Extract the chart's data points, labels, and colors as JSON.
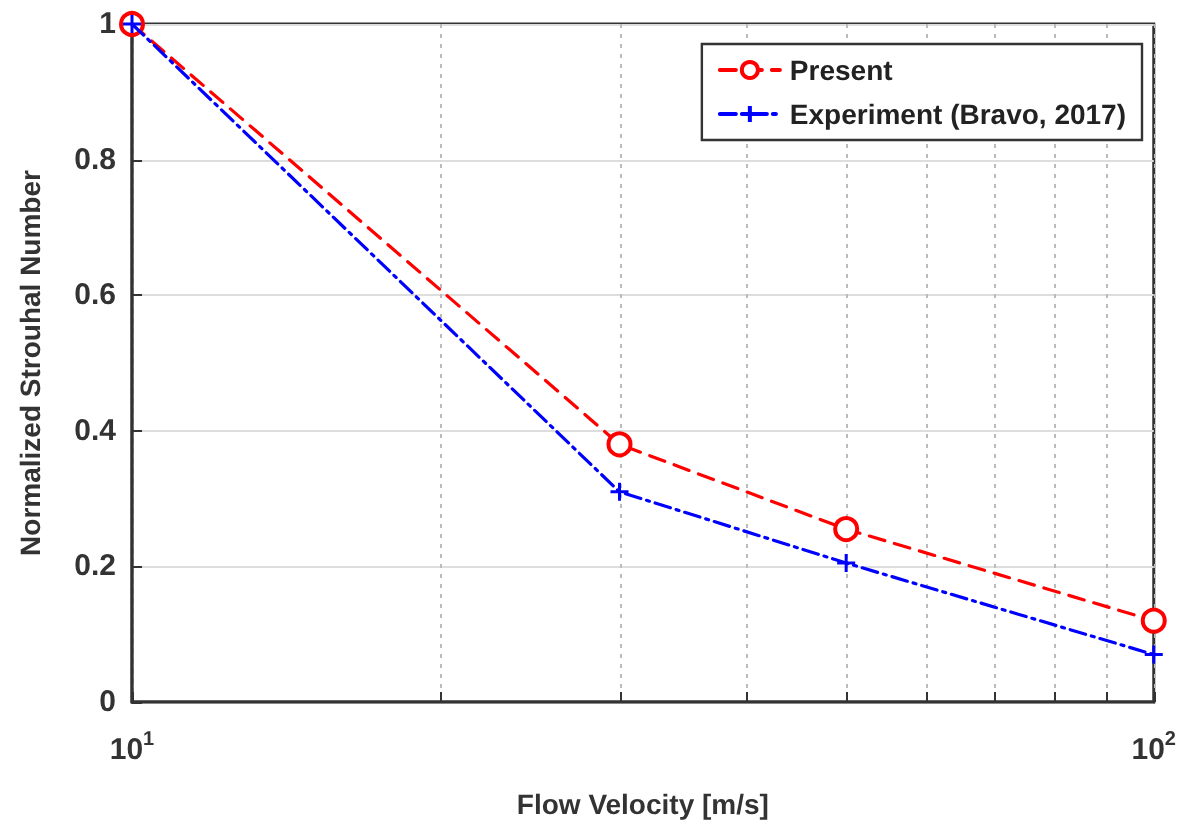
{
  "chart_data": {
    "type": "line",
    "xlabel": "Flow Velocity [m/s]",
    "ylabel": "Normalized Strouhal Number",
    "x": [
      10,
      30,
      50,
      100
    ],
    "series": [
      {
        "name": "Present",
        "color": "#ff0000",
        "values": [
          1,
          0.38,
          0.255,
          0.12
        ],
        "marker": "circle",
        "line_style": "dashed"
      },
      {
        "name": "Experiment (Bravo, 2017)",
        "color": "#0000ff",
        "values": [
          1,
          0.31,
          0.205,
          0.07
        ],
        "marker": "cross",
        "line_style": "dotted"
      }
    ],
    "log": "x",
    "xlim": [
      10,
      100
    ],
    "xticks": [
      {
        "value": 10,
        "label": "10$^{1}$"
      },
      {
        "value": 20,
        "label": null
      },
      {
        "value": 30,
        "label": null
      },
      {
        "value": 40,
        "label": null
      },
      {
        "value": 50,
        "label": null
      },
      {
        "value": 60,
        "label": null
      },
      {
        "value": 70,
        "label": null
      },
      {
        "value": 80,
        "label": null
      },
      {
        "value": 90,
        "label": null
      },
      {
        "value": 100,
        "label": "10$^{2}$"
      }
    ],
    "ylim": [
      0,
      1
    ],
    "yticks": [
      0,
      0.2,
      0.4,
      0.6,
      0.8,
      1
    ],
    "grid": true,
    "legend": "top right"
  }
}
